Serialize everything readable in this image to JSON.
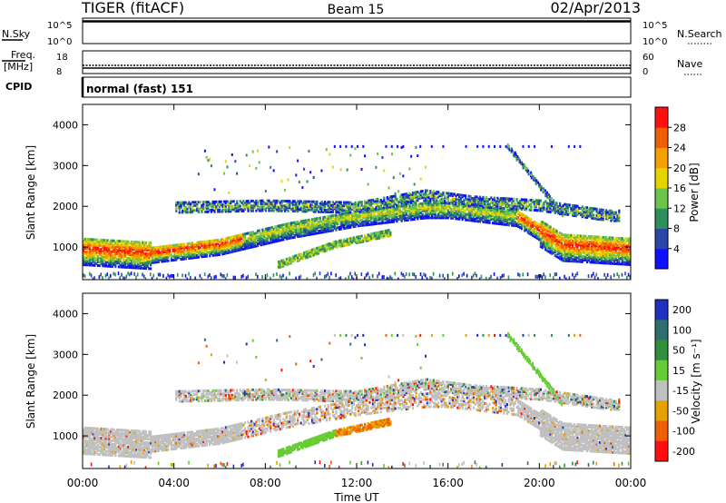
{
  "header": {
    "left": "TIGER (fitACF)",
    "center": "Beam 15",
    "right": "02/Apr/2013"
  },
  "strips": {
    "nsky": {
      "label": "N.Sky",
      "top": "10^5",
      "bottom": "10^0"
    },
    "nsearch": {
      "label": "N.Search",
      "top": "10^5",
      "bottom": "10^0"
    },
    "freq": {
      "label1": "Freq.",
      "label2": "[MHz]",
      "top": "18",
      "bottom": "8"
    },
    "nave": {
      "label": "Nave",
      "top": "60",
      "bottom": "0"
    },
    "cpid": {
      "label": "CPID",
      "text": "normal (fast) 151"
    }
  },
  "chart_data": [
    {
      "type": "heatmap",
      "name": "power",
      "ylabel": "Slant Range [km]",
      "yticks": [
        "1000",
        "2000",
        "3000",
        "4000"
      ],
      "ylim": [
        200,
        4500
      ],
      "colorbar": {
        "label": "Power [dB]",
        "ticks": [
          "4",
          "8",
          "12",
          "16",
          "20",
          "24",
          "28"
        ],
        "colors": [
          "#1010ff",
          "#2a46a8",
          "#2f8f5a",
          "#6cc44a",
          "#e6d400",
          "#f4a000",
          "#f06000",
          "#ff1010"
        ]
      },
      "bands": [
        {
          "desc": "main F-region echoes",
          "x": [
            0,
            3,
            6,
            9,
            12,
            15,
            16,
            19,
            21,
            24
          ],
          "range_km": [
            1000,
            900,
            1100,
            1500,
            1800,
            2000,
            2000,
            1800,
            1100,
            1000
          ]
        },
        {
          "desc": "upper scatter band",
          "x": [
            4,
            8,
            12,
            15,
            17,
            20,
            23
          ],
          "range_km": [
            2000,
            2050,
            2000,
            2300,
            2150,
            2050,
            1800
          ]
        },
        {
          "desc": "lower rising band",
          "x": [
            8.5,
            11,
            13.5
          ],
          "range_km": [
            600,
            1100,
            1400
          ]
        }
      ]
    },
    {
      "type": "heatmap",
      "name": "velocity",
      "ylabel": "Slant Range [km]",
      "yticks": [
        "1000",
        "2000",
        "3000",
        "4000"
      ],
      "ylim": [
        200,
        4500
      ],
      "colorbar": {
        "label": "Velocity [m s⁻¹]",
        "ticks": [
          "200",
          "100",
          "50",
          "15",
          "-15",
          "-50",
          "-100",
          "-200"
        ],
        "colors": [
          "#2030c0",
          "#2f6e6e",
          "#2f8f3a",
          "#66cc33",
          "#c0c0c0",
          "#e6a000",
          "#f06000",
          "#ff1010"
        ]
      },
      "x_ticks": [
        "00:00",
        "04:00",
        "08:00",
        "12:00",
        "16:00",
        "20:00",
        "00:00"
      ],
      "xlabel": "Time UT"
    }
  ]
}
